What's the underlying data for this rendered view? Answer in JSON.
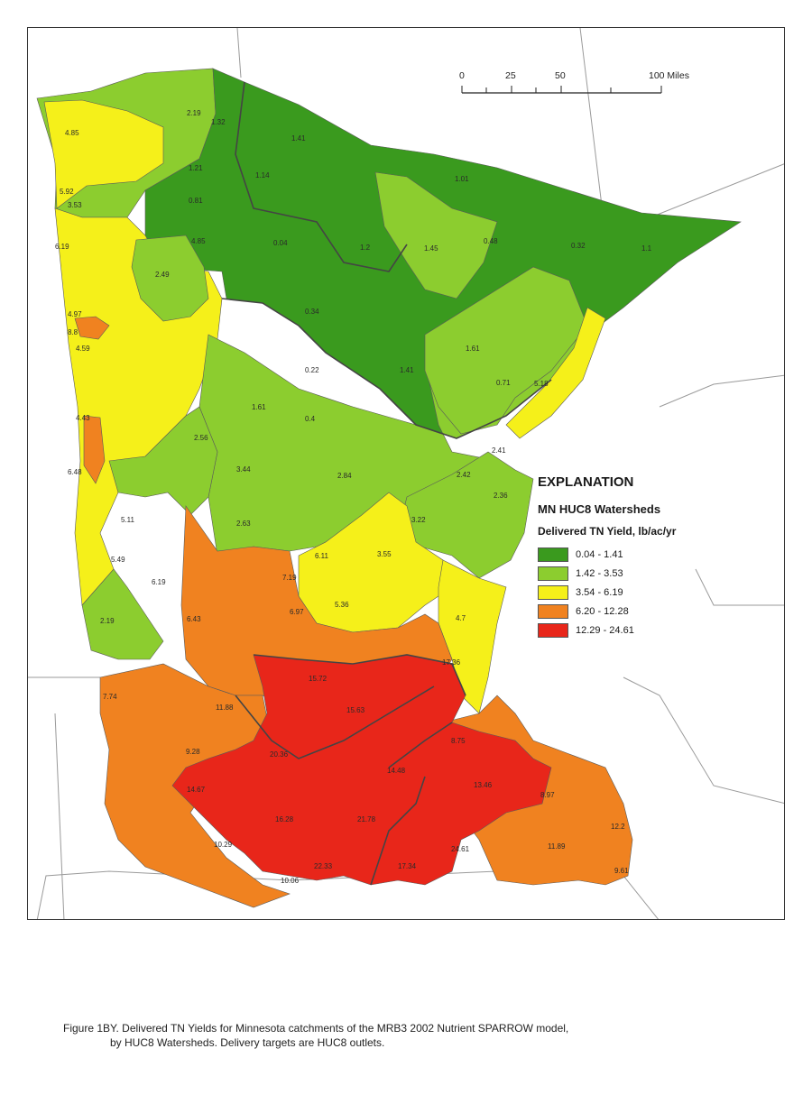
{
  "legend": {
    "title": "EXPLANATION",
    "subtitle": "MN HUC8 Watersheds",
    "field": "Delivered TN Yield, lb/ac/yr",
    "classes": [
      {
        "range": "0.04 - 1.41",
        "color": "#3a9a1e"
      },
      {
        "range": "1.42 - 3.53",
        "color": "#8ccd2f"
      },
      {
        "range": "3.54 - 6.19",
        "color": "#f5f01a"
      },
      {
        "range": "6.20 - 12.28",
        "color": "#f08220"
      },
      {
        "range": "12.29 - 24.61",
        "color": "#e8261a"
      }
    ]
  },
  "scale_bar": {
    "ticks": [
      "0",
      "25",
      "50",
      "100 Miles"
    ]
  },
  "watershed_values": [
    "2.19",
    "1.32",
    "1.41",
    "4.85",
    "1.21",
    "1.14",
    "1.01",
    "5.92",
    "0.81",
    "3.53",
    "0.04",
    "1.2",
    "1.45",
    "0.48",
    "0.32",
    "1.1",
    "6.19",
    "4.85",
    "2.49",
    "4.97",
    "0.34",
    "8.8",
    "4.59",
    "1.61",
    "0.71",
    "5.18",
    "0.22",
    "1.41",
    "4.43",
    "1.61",
    "0.4",
    "2.56",
    "6.48",
    "3.44",
    "2.84",
    "2.41",
    "2.42",
    "2.36",
    "5.11",
    "3.22",
    "5.49",
    "2.63",
    "6.11",
    "3.55",
    "7.19",
    "6.19",
    "6.43",
    "5.36",
    "2.19",
    "6.97",
    "4.7",
    "17.36",
    "15.72",
    "7.74",
    "11.88",
    "15.63",
    "8.75",
    "9.28",
    "20.36",
    "14.48",
    "13.46",
    "14.67",
    "8.97",
    "16.28",
    "21.78",
    "10.29",
    "11.89",
    "12.2",
    "22.33",
    "17.34",
    "24.61",
    "9.61",
    "10.06"
  ],
  "caption": {
    "line1": "Figure 1BY.  Delivered TN Yields for Minnesota catchments of the MRB3 2002 Nutrient SPARROW model,",
    "line2": "by HUC8 Watersheds.  Delivery targets are HUC8 outlets."
  }
}
